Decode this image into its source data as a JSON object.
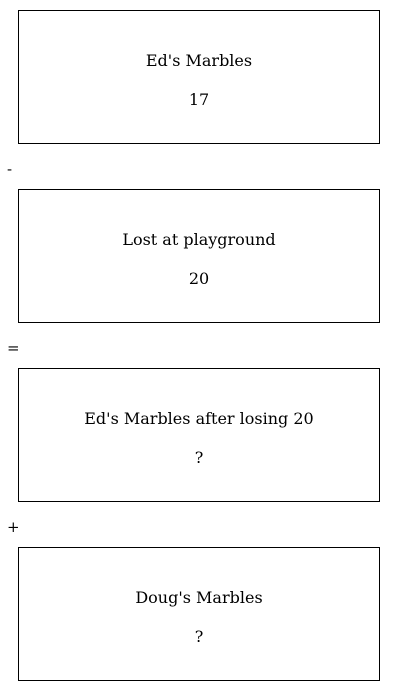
{
  "boxes": [
    {
      "label": "Ed's Marbles",
      "value": "17"
    },
    {
      "label": "Lost at playground",
      "value": "20"
    },
    {
      "label": "Ed's Marbles after losing 20",
      "value": "?"
    },
    {
      "label": "Doug's Marbles",
      "value": "?"
    }
  ],
  "operators": [
    "-",
    "=",
    "+"
  ]
}
